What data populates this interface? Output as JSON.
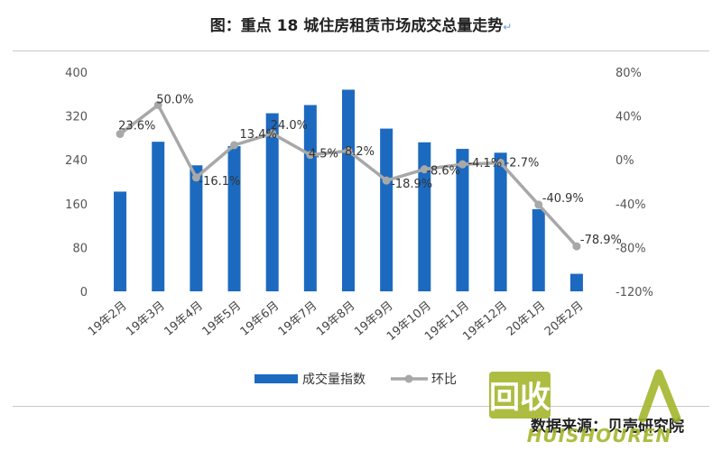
{
  "page": {
    "title": "图：重点 18 城住房租赁市场成交总量走势",
    "return_mark": "↵",
    "source": "数据来源：贝壳研究院",
    "watermark_text": "回收",
    "watermark_brand": "HUISHOUREN"
  },
  "colors": {
    "bar": "#1c6ac0",
    "line": "#a8a8a8",
    "watermark": "#a2b527"
  },
  "chart_data": {
    "type": "bar+line",
    "title": "图：重点 18 城住房租赁市场成交总量走势",
    "categories": [
      "19年2月",
      "19年3月",
      "19年4月",
      "19年5月",
      "19年6月",
      "19年7月",
      "19年8月",
      "19年9月",
      "19年10月",
      "19年11月",
      "19年12月",
      "20年1月",
      "20年2月"
    ],
    "series": [
      {
        "name": "成交量指数",
        "type": "bar",
        "axis": "left",
        "values": [
          182,
          273,
          230,
          265,
          325,
          340,
          368,
          297,
          272,
          260,
          253,
          150,
          32
        ]
      },
      {
        "name": "环比",
        "type": "line",
        "axis": "right",
        "values": [
          23.6,
          50.0,
          -16.1,
          13.4,
          24.0,
          4.5,
          8.2,
          -18.9,
          -8.6,
          -4.1,
          -2.7,
          -40.9,
          -78.9
        ],
        "labels": [
          "23.6%",
          "50.0%",
          "-16.1%",
          "13.4%",
          "24.0%",
          "4.5%",
          "8.2%",
          "-18.9%",
          "-8.6%",
          "-4.1%",
          "-2.7%",
          "-40.9%",
          "-78.9%"
        ]
      }
    ],
    "left_axis": {
      "ylim": [
        0,
        400
      ],
      "ticks": [
        0,
        80,
        160,
        240,
        320,
        400
      ]
    },
    "right_axis": {
      "ylim": [
        -120,
        80
      ],
      "ticks": [
        "80%",
        "40%",
        "0%",
        "-40%",
        "-80%",
        "-120%"
      ],
      "tick_values": [
        80,
        40,
        0,
        -40,
        -80,
        -120
      ]
    },
    "legend": [
      {
        "name": "成交量指数",
        "type": "bar"
      },
      {
        "name": "环比",
        "type": "line"
      }
    ],
    "legend_position": "bottom"
  }
}
